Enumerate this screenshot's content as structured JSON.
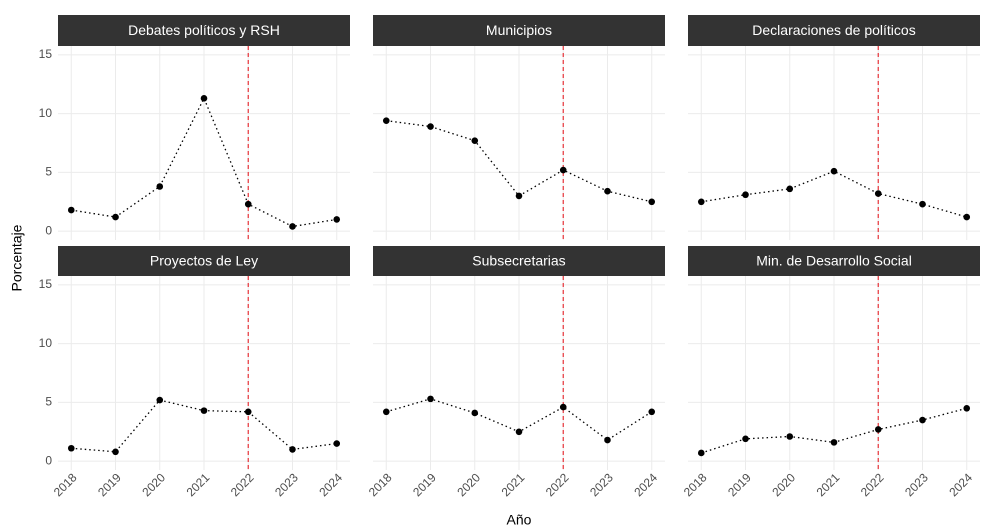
{
  "chart_data": {
    "type": "line",
    "xlabel": "Año",
    "ylabel": "Porcentaje",
    "x": [
      2018,
      2019,
      2020,
      2021,
      2022,
      2023,
      2024
    ],
    "xticks": [
      2018,
      2019,
      2020,
      2021,
      2022,
      2023,
      2024
    ],
    "xlim": [
      2017.7,
      2024.3
    ],
    "ylim": [
      -0.75,
      15.75
    ],
    "yticks": [
      0,
      5,
      10,
      15
    ],
    "grid": true,
    "color": "#000000",
    "vline": 2022,
    "vline_color": "#e8333a",
    "facets": [
      {
        "title": "Debates políticos y RSH",
        "values": [
          1.8,
          1.2,
          3.8,
          11.3,
          2.3,
          0.4,
          1.0
        ]
      },
      {
        "title": "Municipios",
        "values": [
          9.4,
          8.9,
          7.7,
          3.0,
          5.2,
          3.4,
          2.5
        ]
      },
      {
        "title": "Declaraciones de políticos",
        "values": [
          2.5,
          3.1,
          3.6,
          5.1,
          3.2,
          2.3,
          1.2
        ]
      },
      {
        "title": "Proyectos de Ley",
        "values": [
          1.1,
          0.8,
          5.2,
          4.3,
          4.2,
          1.0,
          1.5
        ]
      },
      {
        "title": "Subsecretarias",
        "values": [
          4.2,
          5.3,
          4.1,
          2.5,
          4.6,
          1.8,
          4.2
        ]
      },
      {
        "title": "Min. de Desarrollo Social",
        "values": [
          0.7,
          1.9,
          2.1,
          1.6,
          2.7,
          3.5,
          4.5
        ]
      }
    ]
  }
}
